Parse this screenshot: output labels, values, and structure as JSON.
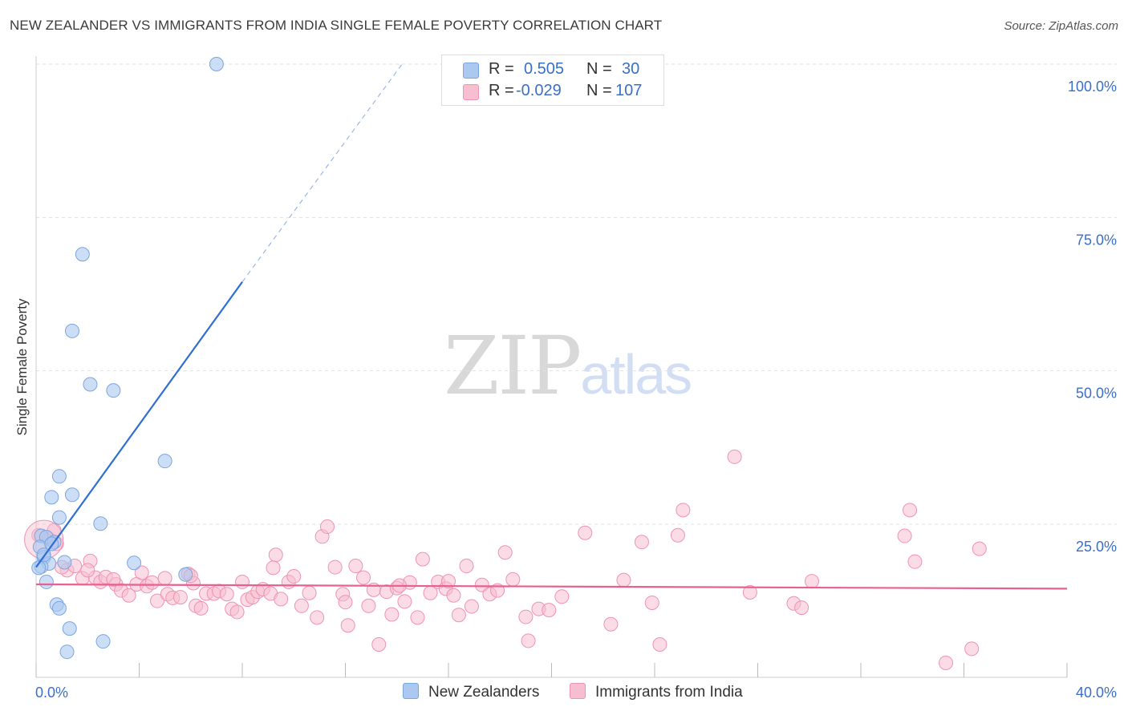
{
  "title": "NEW ZEALANDER VS IMMIGRANTS FROM INDIA SINGLE FEMALE POVERTY CORRELATION CHART",
  "source": "Source: ZipAtlas.com",
  "watermark": {
    "zip": "ZIP",
    "atlas": "atlas"
  },
  "colors": {
    "blue_fill": "#aac8f0",
    "blue_stroke": "#7aa6e0",
    "blue_line": "#2f6fd1",
    "pink_fill": "#f7bdd0",
    "pink_stroke": "#ee93b3",
    "pink_line": "#e8608f",
    "tick_text": "#3a6fc7",
    "grid": "#e1e1e1"
  },
  "legend": {
    "rows": [
      {
        "r_label": "R =",
        "r_value": "0.505",
        "n_label": "N =",
        "n_value": "30"
      },
      {
        "r_label": "R =",
        "r_value": "-0.029",
        "n_label": "N =",
        "n_value": "107"
      }
    ]
  },
  "bottom_legend": {
    "series1": "New Zealanders",
    "series2": "Immigrants from India"
  },
  "chart_data": {
    "type": "scatter",
    "title": "NEW ZEALANDER VS IMMIGRANTS FROM INDIA SINGLE FEMALE POVERTY CORRELATION CHART",
    "xlabel": "",
    "ylabel": "Single Female Poverty",
    "xlim": [
      0,
      40
    ],
    "ylim": [
      0,
      105
    ],
    "x_tick_labels": [
      "0.0%",
      "40.0%"
    ],
    "y_ticks": [
      25,
      50,
      75,
      100
    ],
    "y_tick_labels": [
      "25.0%",
      "50.0%",
      "75.0%",
      "100.0%"
    ],
    "series": [
      {
        "name": "New Zealanders",
        "R": 0.505,
        "N": 30,
        "trend": {
          "x0": 0,
          "y0": 18,
          "x1": 8,
          "y1": 64.5,
          "dash_x1": 14.2,
          "dash_y1": 100
        },
        "points": [
          [
            7.0,
            100
          ],
          [
            1.8,
            69
          ],
          [
            1.4,
            56.5
          ],
          [
            2.1,
            47.8
          ],
          [
            3.0,
            46.8
          ],
          [
            5.0,
            35.3
          ],
          [
            0.9,
            32.8
          ],
          [
            1.4,
            29.8
          ],
          [
            0.6,
            29.4
          ],
          [
            0.9,
            26.1
          ],
          [
            2.5,
            25.1
          ],
          [
            0.2,
            23.1
          ],
          [
            0.4,
            22.9
          ],
          [
            0.7,
            22.1
          ],
          [
            0.15,
            21.3
          ],
          [
            0.3,
            19.6
          ],
          [
            1.1,
            18.8
          ],
          [
            3.8,
            18.7
          ],
          [
            0.5,
            18.6
          ],
          [
            0.2,
            18.1
          ],
          [
            0.1,
            17.9
          ],
          [
            5.8,
            16.8
          ],
          [
            0.4,
            15.6
          ],
          [
            0.8,
            11.9
          ],
          [
            0.9,
            11.3
          ],
          [
            1.3,
            8.0
          ],
          [
            2.6,
            5.9
          ],
          [
            1.2,
            4.2
          ],
          [
            0.3,
            20.0
          ],
          [
            0.6,
            21.8
          ]
        ]
      },
      {
        "name": "Immigrants from India",
        "R": -0.029,
        "N": 107,
        "trend": {
          "x0": 0,
          "y0": 15.2,
          "x1": 40,
          "y1": 14.5
        },
        "points": [
          [
            0.1,
            23.2
          ],
          [
            0.5,
            22.6
          ],
          [
            0.8,
            21.8
          ],
          [
            0.7,
            24.0
          ],
          [
            1.2,
            17.5
          ],
          [
            1.5,
            18.2
          ],
          [
            1.8,
            16.2
          ],
          [
            2.1,
            19.0
          ],
          [
            2.3,
            16.3
          ],
          [
            2.5,
            15.6
          ],
          [
            2.7,
            16.4
          ],
          [
            3.1,
            15.2
          ],
          [
            3.3,
            14.2
          ],
          [
            3.6,
            13.4
          ],
          [
            3.9,
            15.2
          ],
          [
            4.1,
            17.1
          ],
          [
            4.3,
            14.9
          ],
          [
            4.5,
            15.5
          ],
          [
            4.7,
            12.5
          ],
          [
            5.0,
            16.2
          ],
          [
            5.1,
            13.6
          ],
          [
            5.3,
            13.0
          ],
          [
            5.6,
            13.1
          ],
          [
            5.9,
            16.9
          ],
          [
            6.1,
            15.4
          ],
          [
            6.2,
            11.7
          ],
          [
            6.4,
            11.3
          ],
          [
            6.6,
            13.7
          ],
          [
            6.9,
            13.7
          ],
          [
            7.1,
            14.1
          ],
          [
            7.4,
            13.6
          ],
          [
            7.6,
            11.2
          ],
          [
            7.8,
            10.7
          ],
          [
            8.0,
            15.6
          ],
          [
            8.2,
            12.7
          ],
          [
            8.4,
            13.1
          ],
          [
            8.6,
            14.0
          ],
          [
            8.8,
            14.4
          ],
          [
            9.1,
            13.7
          ],
          [
            9.3,
            20.0
          ],
          [
            9.5,
            12.8
          ],
          [
            9.8,
            15.6
          ],
          [
            10.0,
            16.5
          ],
          [
            10.3,
            11.7
          ],
          [
            10.6,
            13.8
          ],
          [
            10.9,
            9.8
          ],
          [
            11.1,
            23.0
          ],
          [
            11.3,
            24.6
          ],
          [
            11.6,
            18.0
          ],
          [
            11.9,
            13.6
          ],
          [
            12.1,
            8.5
          ],
          [
            12.4,
            18.2
          ],
          [
            12.7,
            16.3
          ],
          [
            12.9,
            11.7
          ],
          [
            13.1,
            14.3
          ],
          [
            13.3,
            5.4
          ],
          [
            13.6,
            14.0
          ],
          [
            13.8,
            10.3
          ],
          [
            14.0,
            14.6
          ],
          [
            14.3,
            12.4
          ],
          [
            14.5,
            15.5
          ],
          [
            14.8,
            9.8
          ],
          [
            15.0,
            19.3
          ],
          [
            15.3,
            13.8
          ],
          [
            15.6,
            15.6
          ],
          [
            15.9,
            14.5
          ],
          [
            16.2,
            13.4
          ],
          [
            16.4,
            10.2
          ],
          [
            16.7,
            18.2
          ],
          [
            16.9,
            11.6
          ],
          [
            17.3,
            15.1
          ],
          [
            17.6,
            13.6
          ],
          [
            17.9,
            14.2
          ],
          [
            18.2,
            20.4
          ],
          [
            18.5,
            16.0
          ],
          [
            19.0,
            9.9
          ],
          [
            19.1,
            6.0
          ],
          [
            19.5,
            11.2
          ],
          [
            19.9,
            11.0
          ],
          [
            20.4,
            13.2
          ],
          [
            21.3,
            23.6
          ],
          [
            22.3,
            8.7
          ],
          [
            22.8,
            15.9
          ],
          [
            23.5,
            22.1
          ],
          [
            23.9,
            12.2
          ],
          [
            24.2,
            5.4
          ],
          [
            24.9,
            23.2
          ],
          [
            25.1,
            27.3
          ],
          [
            27.1,
            36.0
          ],
          [
            27.7,
            13.9
          ],
          [
            29.4,
            12.1
          ],
          [
            29.7,
            11.4
          ],
          [
            30.1,
            15.7
          ],
          [
            33.7,
            23.1
          ],
          [
            33.9,
            27.3
          ],
          [
            34.1,
            18.9
          ],
          [
            35.3,
            2.4
          ],
          [
            36.3,
            4.7
          ],
          [
            36.6,
            21.0
          ],
          [
            6.0,
            16.6
          ],
          [
            2.0,
            17.5
          ],
          [
            9.2,
            17.9
          ],
          [
            14.1,
            15.0
          ],
          [
            12.0,
            12.3
          ],
          [
            16.0,
            15.7
          ],
          [
            1.0,
            18.0
          ],
          [
            3.0,
            16.0
          ]
        ]
      }
    ]
  }
}
